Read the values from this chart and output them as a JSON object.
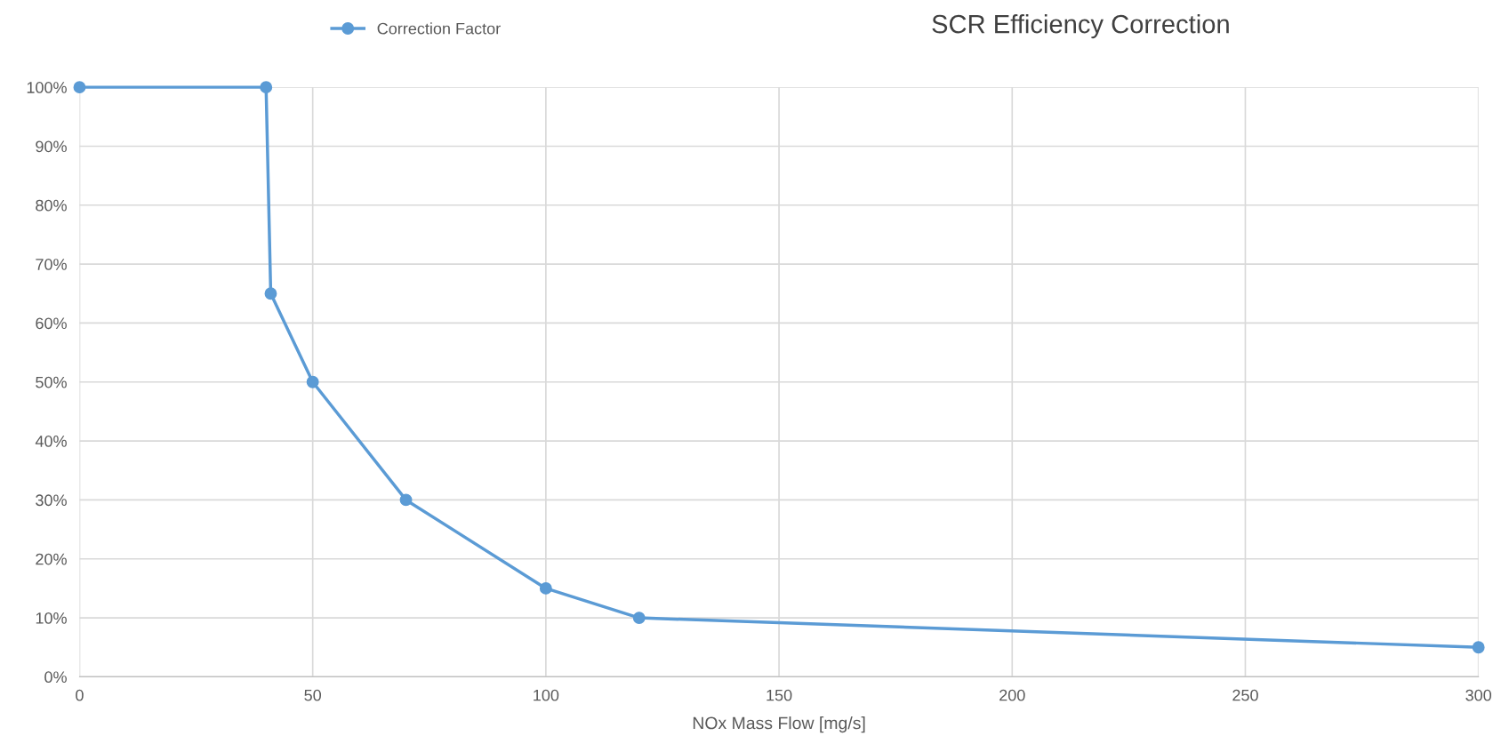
{
  "chart_data": {
    "type": "line",
    "title": "SCR Efficiency Correction",
    "xlabel": "NOx Mass Flow [mg/s]",
    "x": [
      0,
      40,
      41,
      50,
      70,
      100,
      120,
      300
    ],
    "series": [
      {
        "name": "Correction Factor",
        "color": "#5b9bd5",
        "values": [
          100,
          100,
          65,
          50,
          30,
          15,
          10,
          5
        ]
      }
    ],
    "xlim": [
      0,
      300
    ],
    "xticks": [
      0,
      50,
      100,
      150,
      200,
      250,
      300
    ],
    "ylim": [
      0,
      100
    ],
    "yticks": [
      {
        "value": 0,
        "label": "0%"
      },
      {
        "value": 10,
        "label": "10%"
      },
      {
        "value": 20,
        "label": "20%"
      },
      {
        "value": 30,
        "label": "30%"
      },
      {
        "value": 40,
        "label": "40%"
      },
      {
        "value": 50,
        "label": "50%"
      },
      {
        "value": 60,
        "label": "60%"
      },
      {
        "value": 70,
        "label": "70%"
      },
      {
        "value": 80,
        "label": "80%"
      },
      {
        "value": 90,
        "label": "90%"
      },
      {
        "value": 100,
        "label": "100%"
      }
    ],
    "grid": true,
    "legend": "top left",
    "marker": "circle",
    "line_style": "solid"
  }
}
